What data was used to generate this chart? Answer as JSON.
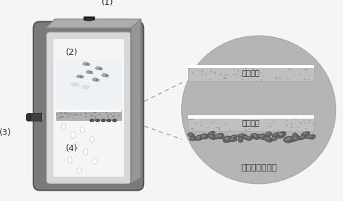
{
  "bg_color": "#f5f5f5",
  "label_1": "(1)",
  "label_2": "(2)",
  "label_3": "(3)",
  "label_4": "(4)",
  "text_active_carbon_top": "活性炭层",
  "text_active_carbon_bottom": "活性炭层",
  "text_biofilm": "复合结构生物膜",
  "label_color": "#333333",
  "dashed_line_color": "#999999",
  "reactor_outer_dark": "#7a7a7a",
  "reactor_outer_mid": "#989898",
  "reactor_inner_white": "#f8f8f8",
  "tube_dark": "#404040",
  "ellipse_bg": "#b5b5b5",
  "layer_gray": "#aaaaaa",
  "layer_dark_gray": "#888888",
  "white_strip": "#ffffff",
  "biofilm_dark": "#555555",
  "biofilm_mid": "#777777",
  "bubble_color": "#e8e8e8",
  "liquid_color": "#e8eef0"
}
